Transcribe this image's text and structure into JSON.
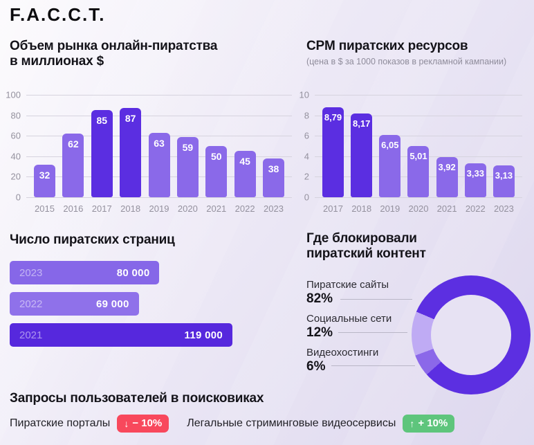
{
  "logo": "F.A.C.C.T.",
  "colors": {
    "bar_light": "#8a69e9",
    "bar_dark": "#5b2ee1",
    "grid": "#d6d3de",
    "axis_text": "#94919e",
    "leader_line": "#b9b6c6",
    "red_badge": "#f8485c",
    "green_badge": "#5ec57c",
    "donut_hole": "#e7e2f3"
  },
  "chart_data": [
    {
      "type": "bar",
      "title": "Объем рынка онлайн-пиратства в миллионах $",
      "title_lines": [
        "Объем рынка онлайн-пиратства",
        "в миллионах $"
      ],
      "categories": [
        "2015",
        "2016",
        "2017",
        "2018",
        "2019",
        "2020",
        "2021",
        "2022",
        "2023"
      ],
      "values": [
        32,
        62,
        85,
        87,
        63,
        59,
        50,
        45,
        38
      ],
      "emphasis": [
        "2017",
        "2018"
      ],
      "ylim": [
        0,
        100
      ],
      "yticks": [
        100,
        80,
        60,
        40,
        20,
        0
      ],
      "grid": true,
      "legend": "none"
    },
    {
      "type": "bar",
      "title": "CPM пиратских ресурсов",
      "subtitle": "(цена в $ за 1000 показов в рекламной кампании)",
      "categories": [
        "2017",
        "2018",
        "2019",
        "2020",
        "2021",
        "2022",
        "2023"
      ],
      "values": [
        8.79,
        8.17,
        6.05,
        5.01,
        3.92,
        3.33,
        3.13
      ],
      "value_labels": [
        "8,79",
        "8,17",
        "6,05",
        "5,01",
        "3,92",
        "3,33",
        "3,13"
      ],
      "emphasis": [
        "2017",
        "2018"
      ],
      "ylim": [
        0,
        10
      ],
      "yticks": [
        10,
        8,
        6,
        4,
        2,
        0
      ],
      "grid": true,
      "legend": "none"
    },
    {
      "type": "bar-horizontal",
      "title": "Число пиратских страниц",
      "categories": [
        "2023",
        "2022",
        "2021"
      ],
      "values": [
        80000,
        69000,
        119000
      ],
      "value_labels": [
        "80 000",
        "69 000",
        "119 000"
      ],
      "bar_colors": [
        "#8667e8",
        "#8f71ea",
        "#5628dd"
      ]
    },
    {
      "type": "pie",
      "title": "Где блокировали пиратский контент",
      "title_lines": [
        "Где блокировали",
        "пиратский контент"
      ],
      "slices": [
        {
          "label": "Пиратские сайты",
          "pct": 82,
          "pct_label": "82%",
          "color": "#5c2fe1"
        },
        {
          "label": "Социальные сети",
          "pct": 12,
          "pct_label": "12%",
          "color": "#bfabf4"
        },
        {
          "label": "Видеохостинги",
          "pct": 6,
          "pct_label": "6%",
          "color": "#8b68e9"
        }
      ],
      "legend_position": "left"
    }
  ],
  "search_trends": {
    "title": "Запросы пользователей в поисковиках",
    "items": [
      {
        "label": "Пиратские порталы",
        "arrow": "↓",
        "change": "− 10%",
        "color": "#f8485c"
      },
      {
        "label": "Легальные стриминговые видеосервисы",
        "arrow": "↑",
        "change": "+ 10%",
        "color": "#5ec57c"
      }
    ]
  }
}
